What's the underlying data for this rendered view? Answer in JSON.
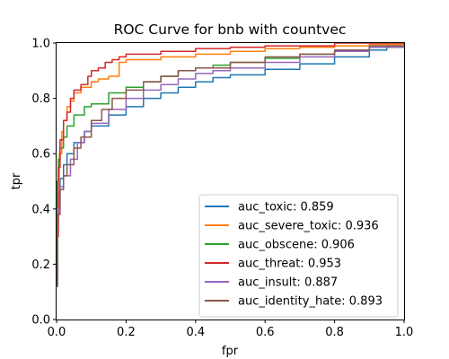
{
  "chart_data": {
    "type": "line",
    "title": "ROC Curve for bnb with countvec",
    "xlabel": "fpr",
    "ylabel": "tpr",
    "xlim": [
      0,
      1
    ],
    "ylim": [
      0,
      1
    ],
    "xticks": [
      "0.0",
      "0.2",
      "0.4",
      "0.6",
      "0.8",
      "1.0"
    ],
    "yticks": [
      "0.0",
      "0.2",
      "0.4",
      "0.6",
      "0.8",
      "1.0"
    ],
    "grid": false,
    "legend_position": "lower-right",
    "series": [
      {
        "name": "auc_toxic: 0.859",
        "color": "#1f77b4",
        "points": [
          [
            0,
            0.12
          ],
          [
            0.002,
            0.35
          ],
          [
            0.005,
            0.45
          ],
          [
            0.01,
            0.51
          ],
          [
            0.02,
            0.56
          ],
          [
            0.03,
            0.6
          ],
          [
            0.05,
            0.64
          ],
          [
            0.08,
            0.68
          ],
          [
            0.1,
            0.7
          ],
          [
            0.15,
            0.74
          ],
          [
            0.2,
            0.77
          ],
          [
            0.25,
            0.8
          ],
          [
            0.3,
            0.82
          ],
          [
            0.35,
            0.84
          ],
          [
            0.4,
            0.86
          ],
          [
            0.45,
            0.875
          ],
          [
            0.5,
            0.885
          ],
          [
            0.6,
            0.905
          ],
          [
            0.7,
            0.925
          ],
          [
            0.8,
            0.95
          ],
          [
            0.9,
            0.975
          ],
          [
            0.95,
            0.99
          ],
          [
            1,
            1
          ]
        ]
      },
      {
        "name": "auc_severe_toxic: 0.936",
        "color": "#ff7f0e",
        "points": [
          [
            0,
            0.35
          ],
          [
            0.003,
            0.5
          ],
          [
            0.008,
            0.6
          ],
          [
            0.015,
            0.68
          ],
          [
            0.02,
            0.72
          ],
          [
            0.03,
            0.77
          ],
          [
            0.04,
            0.79
          ],
          [
            0.05,
            0.82
          ],
          [
            0.07,
            0.84
          ],
          [
            0.1,
            0.86
          ],
          [
            0.12,
            0.87
          ],
          [
            0.15,
            0.88
          ],
          [
            0.18,
            0.93
          ],
          [
            0.2,
            0.94
          ],
          [
            0.3,
            0.95
          ],
          [
            0.4,
            0.96
          ],
          [
            0.5,
            0.97
          ],
          [
            0.6,
            0.98
          ],
          [
            0.7,
            0.985
          ],
          [
            0.8,
            0.99
          ],
          [
            0.9,
            0.995
          ],
          [
            1,
            1
          ]
        ]
      },
      {
        "name": "auc_obscene: 0.906",
        "color": "#2ca02c",
        "points": [
          [
            0,
            0.2
          ],
          [
            0.002,
            0.5
          ],
          [
            0.005,
            0.58
          ],
          [
            0.01,
            0.62
          ],
          [
            0.02,
            0.66
          ],
          [
            0.03,
            0.7
          ],
          [
            0.05,
            0.74
          ],
          [
            0.08,
            0.77
          ],
          [
            0.1,
            0.78
          ],
          [
            0.15,
            0.82
          ],
          [
            0.2,
            0.84
          ],
          [
            0.25,
            0.86
          ],
          [
            0.3,
            0.88
          ],
          [
            0.35,
            0.9
          ],
          [
            0.4,
            0.91
          ],
          [
            0.45,
            0.92
          ],
          [
            0.5,
            0.93
          ],
          [
            0.6,
            0.945
          ],
          [
            0.7,
            0.96
          ],
          [
            0.8,
            0.97
          ],
          [
            0.9,
            0.985
          ],
          [
            1,
            1
          ]
        ]
      },
      {
        "name": "auc_threat: 0.953",
        "color": "#d62728",
        "points": [
          [
            0,
            0.3
          ],
          [
            0.005,
            0.55
          ],
          [
            0.01,
            0.65
          ],
          [
            0.02,
            0.72
          ],
          [
            0.03,
            0.75
          ],
          [
            0.04,
            0.8
          ],
          [
            0.05,
            0.83
          ],
          [
            0.07,
            0.85
          ],
          [
            0.09,
            0.88
          ],
          [
            0.1,
            0.9
          ],
          [
            0.12,
            0.91
          ],
          [
            0.14,
            0.93
          ],
          [
            0.16,
            0.94
          ],
          [
            0.18,
            0.95
          ],
          [
            0.2,
            0.96
          ],
          [
            0.3,
            0.97
          ],
          [
            0.4,
            0.98
          ],
          [
            0.5,
            0.985
          ],
          [
            0.6,
            0.99
          ],
          [
            0.8,
            1
          ],
          [
            1,
            1
          ]
        ]
      },
      {
        "name": "auc_insult: 0.887",
        "color": "#9467bd",
        "points": [
          [
            0,
            0.15
          ],
          [
            0.003,
            0.4
          ],
          [
            0.01,
            0.48
          ],
          [
            0.02,
            0.52
          ],
          [
            0.04,
            0.58
          ],
          [
            0.06,
            0.64
          ],
          [
            0.08,
            0.68
          ],
          [
            0.1,
            0.71
          ],
          [
            0.15,
            0.76
          ],
          [
            0.2,
            0.8
          ],
          [
            0.25,
            0.83
          ],
          [
            0.3,
            0.85
          ],
          [
            0.35,
            0.87
          ],
          [
            0.4,
            0.89
          ],
          [
            0.45,
            0.9
          ],
          [
            0.5,
            0.91
          ],
          [
            0.6,
            0.93
          ],
          [
            0.7,
            0.95
          ],
          [
            0.8,
            0.97
          ],
          [
            0.9,
            0.985
          ],
          [
            1,
            1
          ]
        ]
      },
      {
        "name": "auc_identity_hate: 0.893",
        "color": "#8c564b",
        "points": [
          [
            0,
            0.12
          ],
          [
            0.003,
            0.38
          ],
          [
            0.01,
            0.47
          ],
          [
            0.02,
            0.52
          ],
          [
            0.03,
            0.56
          ],
          [
            0.05,
            0.62
          ],
          [
            0.07,
            0.66
          ],
          [
            0.1,
            0.72
          ],
          [
            0.13,
            0.76
          ],
          [
            0.16,
            0.8
          ],
          [
            0.2,
            0.83
          ],
          [
            0.25,
            0.86
          ],
          [
            0.3,
            0.88
          ],
          [
            0.35,
            0.9
          ],
          [
            0.4,
            0.91
          ],
          [
            0.5,
            0.93
          ],
          [
            0.6,
            0.95
          ],
          [
            0.7,
            0.96
          ],
          [
            0.8,
            0.975
          ],
          [
            0.9,
            0.99
          ],
          [
            1,
            1
          ]
        ]
      }
    ]
  }
}
